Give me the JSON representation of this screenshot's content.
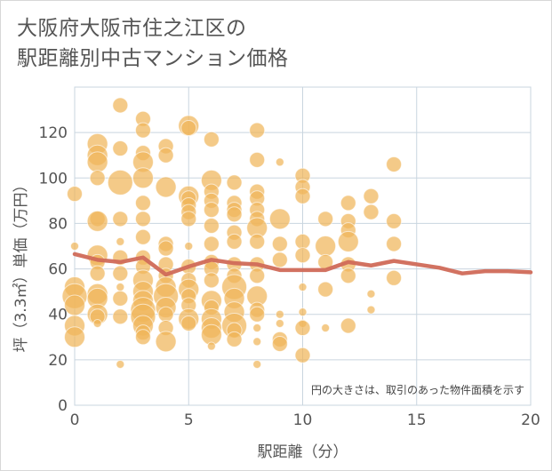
{
  "title": {
    "line1": "大阪府大阪市住之江区の",
    "line2": "駅距離別中古マンション価格"
  },
  "note": "円の大きさは、取引のあった物件面積を示す",
  "colors": {
    "bubble": "#f0b55a",
    "line": "#d06a58",
    "grid": "#c9d5df",
    "plot_bg": "#ffffff"
  },
  "chart_data": {
    "type": "scatter",
    "xlabel": "駅距離（分）",
    "ylabel": "坪（3.3㎡）単価（万円）",
    "xlim": [
      0,
      20
    ],
    "ylim": [
      0,
      140
    ],
    "x_ticks": [
      0,
      5,
      10,
      15,
      20
    ],
    "y_ticks": [
      0,
      20,
      40,
      60,
      80,
      100,
      120
    ],
    "grid": true,
    "points": [
      {
        "x": 0,
        "y": 93,
        "s": 2
      },
      {
        "x": 0,
        "y": 70,
        "s": 1
      },
      {
        "x": 0,
        "y": 52,
        "s": 3
      },
      {
        "x": 0,
        "y": 48,
        "s": 4
      },
      {
        "x": 0,
        "y": 44,
        "s": 3
      },
      {
        "x": 0,
        "y": 35,
        "s": 3
      },
      {
        "x": 0,
        "y": 30,
        "s": 3
      },
      {
        "x": 1,
        "y": 115,
        "s": 3
      },
      {
        "x": 1,
        "y": 110,
        "s": 3
      },
      {
        "x": 1,
        "y": 107,
        "s": 3
      },
      {
        "x": 1,
        "y": 100,
        "s": 2
      },
      {
        "x": 1,
        "y": 82,
        "s": 2
      },
      {
        "x": 1,
        "y": 81,
        "s": 3
      },
      {
        "x": 1,
        "y": 66,
        "s": 3
      },
      {
        "x": 1,
        "y": 63,
        "s": 2
      },
      {
        "x": 1,
        "y": 58,
        "s": 2
      },
      {
        "x": 1,
        "y": 49,
        "s": 3
      },
      {
        "x": 1,
        "y": 47,
        "s": 3
      },
      {
        "x": 1,
        "y": 40,
        "s": 3
      },
      {
        "x": 1,
        "y": 39,
        "s": 2
      },
      {
        "x": 1,
        "y": 36,
        "s": 1
      },
      {
        "x": 2,
        "y": 132,
        "s": 2
      },
      {
        "x": 2,
        "y": 113,
        "s": 2
      },
      {
        "x": 2,
        "y": 98,
        "s": 4
      },
      {
        "x": 2,
        "y": 82,
        "s": 2
      },
      {
        "x": 2,
        "y": 72,
        "s": 1
      },
      {
        "x": 2,
        "y": 65,
        "s": 2
      },
      {
        "x": 2,
        "y": 58,
        "s": 2
      },
      {
        "x": 2,
        "y": 52,
        "s": 1
      },
      {
        "x": 2,
        "y": 47,
        "s": 2
      },
      {
        "x": 2,
        "y": 39,
        "s": 2
      },
      {
        "x": 2,
        "y": 18,
        "s": 1
      },
      {
        "x": 3,
        "y": 126,
        "s": 2
      },
      {
        "x": 3,
        "y": 121,
        "s": 2
      },
      {
        "x": 3,
        "y": 111,
        "s": 2
      },
      {
        "x": 3,
        "y": 107,
        "s": 3
      },
      {
        "x": 3,
        "y": 100,
        "s": 3
      },
      {
        "x": 3,
        "y": 89,
        "s": 2
      },
      {
        "x": 3,
        "y": 82,
        "s": 2
      },
      {
        "x": 3,
        "y": 74,
        "s": 2
      },
      {
        "x": 3,
        "y": 65,
        "s": 2
      },
      {
        "x": 3,
        "y": 61,
        "s": 2
      },
      {
        "x": 3,
        "y": 55,
        "s": 3
      },
      {
        "x": 3,
        "y": 50,
        "s": 3
      },
      {
        "x": 3,
        "y": 46,
        "s": 3
      },
      {
        "x": 3,
        "y": 42,
        "s": 4
      },
      {
        "x": 3,
        "y": 39,
        "s": 4
      },
      {
        "x": 3,
        "y": 35,
        "s": 3
      },
      {
        "x": 3,
        "y": 32,
        "s": 2
      },
      {
        "x": 3,
        "y": 30,
        "s": 2
      },
      {
        "x": 4,
        "y": 114,
        "s": 2
      },
      {
        "x": 4,
        "y": 110,
        "s": 2
      },
      {
        "x": 4,
        "y": 96,
        "s": 3
      },
      {
        "x": 4,
        "y": 71,
        "s": 2
      },
      {
        "x": 4,
        "y": 69,
        "s": 2
      },
      {
        "x": 4,
        "y": 62,
        "s": 2
      },
      {
        "x": 4,
        "y": 57,
        "s": 2
      },
      {
        "x": 4,
        "y": 52,
        "s": 3
      },
      {
        "x": 4,
        "y": 48,
        "s": 4
      },
      {
        "x": 4,
        "y": 43,
        "s": 3
      },
      {
        "x": 4,
        "y": 40,
        "s": 2
      },
      {
        "x": 4,
        "y": 34,
        "s": 2
      },
      {
        "x": 4,
        "y": 28,
        "s": 3
      },
      {
        "x": 5,
        "y": 123,
        "s": 3
      },
      {
        "x": 5,
        "y": 122,
        "s": 2
      },
      {
        "x": 5,
        "y": 92,
        "s": 3
      },
      {
        "x": 5,
        "y": 91,
        "s": 2
      },
      {
        "x": 5,
        "y": 88,
        "s": 2
      },
      {
        "x": 5,
        "y": 85,
        "s": 2
      },
      {
        "x": 5,
        "y": 82,
        "s": 2
      },
      {
        "x": 5,
        "y": 70,
        "s": 1
      },
      {
        "x": 5,
        "y": 61,
        "s": 2
      },
      {
        "x": 5,
        "y": 55,
        "s": 2
      },
      {
        "x": 5,
        "y": 51,
        "s": 3
      },
      {
        "x": 5,
        "y": 48,
        "s": 2
      },
      {
        "x": 5,
        "y": 44,
        "s": 2
      },
      {
        "x": 5,
        "y": 38,
        "s": 3
      },
      {
        "x": 5,
        "y": 36,
        "s": 2
      },
      {
        "x": 6,
        "y": 117,
        "s": 2
      },
      {
        "x": 6,
        "y": 99,
        "s": 3
      },
      {
        "x": 6,
        "y": 94,
        "s": 2
      },
      {
        "x": 6,
        "y": 90,
        "s": 2
      },
      {
        "x": 6,
        "y": 86,
        "s": 2
      },
      {
        "x": 6,
        "y": 79,
        "s": 2
      },
      {
        "x": 6,
        "y": 71,
        "s": 2
      },
      {
        "x": 6,
        "y": 63,
        "s": 2
      },
      {
        "x": 6,
        "y": 60,
        "s": 2
      },
      {
        "x": 6,
        "y": 55,
        "s": 2
      },
      {
        "x": 6,
        "y": 46,
        "s": 3
      },
      {
        "x": 6,
        "y": 43,
        "s": 2
      },
      {
        "x": 6,
        "y": 38,
        "s": 3
      },
      {
        "x": 6,
        "y": 34,
        "s": 3
      },
      {
        "x": 6,
        "y": 31,
        "s": 3
      },
      {
        "x": 6,
        "y": 26,
        "s": 1
      },
      {
        "x": 7,
        "y": 98,
        "s": 2
      },
      {
        "x": 7,
        "y": 89,
        "s": 2
      },
      {
        "x": 7,
        "y": 86,
        "s": 2
      },
      {
        "x": 7,
        "y": 84,
        "s": 2
      },
      {
        "x": 7,
        "y": 76,
        "s": 2
      },
      {
        "x": 7,
        "y": 72,
        "s": 2
      },
      {
        "x": 7,
        "y": 62,
        "s": 2
      },
      {
        "x": 7,
        "y": 57,
        "s": 2
      },
      {
        "x": 7,
        "y": 52,
        "s": 4
      },
      {
        "x": 7,
        "y": 47,
        "s": 3
      },
      {
        "x": 7,
        "y": 41,
        "s": 3
      },
      {
        "x": 7,
        "y": 35,
        "s": 4
      },
      {
        "x": 7,
        "y": 33,
        "s": 2
      },
      {
        "x": 7,
        "y": 29,
        "s": 2
      },
      {
        "x": 8,
        "y": 121,
        "s": 2
      },
      {
        "x": 8,
        "y": 108,
        "s": 2
      },
      {
        "x": 8,
        "y": 94,
        "s": 2
      },
      {
        "x": 8,
        "y": 91,
        "s": 2
      },
      {
        "x": 8,
        "y": 86,
        "s": 2
      },
      {
        "x": 8,
        "y": 82,
        "s": 2
      },
      {
        "x": 8,
        "y": 78,
        "s": 3
      },
      {
        "x": 8,
        "y": 72,
        "s": 2
      },
      {
        "x": 8,
        "y": 62,
        "s": 2
      },
      {
        "x": 8,
        "y": 57,
        "s": 2
      },
      {
        "x": 8,
        "y": 48,
        "s": 3
      },
      {
        "x": 8,
        "y": 42,
        "s": 2
      },
      {
        "x": 8,
        "y": 40,
        "s": 2
      },
      {
        "x": 8,
        "y": 34,
        "s": 1
      },
      {
        "x": 8,
        "y": 28,
        "s": 1
      },
      {
        "x": 8,
        "y": 18,
        "s": 1
      },
      {
        "x": 9,
        "y": 107,
        "s": 1
      },
      {
        "x": 9,
        "y": 82,
        "s": 3
      },
      {
        "x": 9,
        "y": 71,
        "s": 2
      },
      {
        "x": 9,
        "y": 64,
        "s": 2
      },
      {
        "x": 9,
        "y": 40,
        "s": 1
      },
      {
        "x": 9,
        "y": 36,
        "s": 1
      },
      {
        "x": 9,
        "y": 29,
        "s": 2
      },
      {
        "x": 9,
        "y": 27,
        "s": 2
      },
      {
        "x": 10,
        "y": 101,
        "s": 2
      },
      {
        "x": 10,
        "y": 96,
        "s": 2
      },
      {
        "x": 10,
        "y": 92,
        "s": 2
      },
      {
        "x": 10,
        "y": 72,
        "s": 2
      },
      {
        "x": 10,
        "y": 66,
        "s": 2
      },
      {
        "x": 10,
        "y": 52,
        "s": 1
      },
      {
        "x": 10,
        "y": 41,
        "s": 1
      },
      {
        "x": 10,
        "y": 36,
        "s": 1
      },
      {
        "x": 10,
        "y": 34,
        "s": 2
      },
      {
        "x": 10,
        "y": 22,
        "s": 2
      },
      {
        "x": 11,
        "y": 82,
        "s": 2
      },
      {
        "x": 11,
        "y": 70,
        "s": 3
      },
      {
        "x": 11,
        "y": 63,
        "s": 2
      },
      {
        "x": 11,
        "y": 51,
        "s": 2
      },
      {
        "x": 11,
        "y": 34,
        "s": 1
      },
      {
        "x": 12,
        "y": 89,
        "s": 2
      },
      {
        "x": 12,
        "y": 81,
        "s": 2
      },
      {
        "x": 12,
        "y": 77,
        "s": 2
      },
      {
        "x": 12,
        "y": 72,
        "s": 3
      },
      {
        "x": 12,
        "y": 62,
        "s": 2
      },
      {
        "x": 12,
        "y": 57,
        "s": 2
      },
      {
        "x": 12,
        "y": 35,
        "s": 2
      },
      {
        "x": 13,
        "y": 92,
        "s": 2
      },
      {
        "x": 13,
        "y": 85,
        "s": 2
      },
      {
        "x": 13,
        "y": 49,
        "s": 1
      },
      {
        "x": 13,
        "y": 42,
        "s": 1
      },
      {
        "x": 14,
        "y": 106,
        "s": 2
      },
      {
        "x": 14,
        "y": 81,
        "s": 2
      },
      {
        "x": 14,
        "y": 71,
        "s": 2
      },
      {
        "x": 14,
        "y": 56,
        "s": 2
      }
    ],
    "line": {
      "x": [
        0,
        1,
        2,
        3,
        4,
        5,
        6,
        7,
        8,
        9,
        10,
        11,
        12,
        13,
        14,
        15,
        16,
        17,
        18,
        19,
        20
      ],
      "y": [
        66.5,
        64,
        63,
        65,
        57.5,
        61,
        64,
        62.5,
        62,
        59.5,
        59.5,
        59.5,
        63,
        61.5,
        63.5,
        62,
        60.5,
        58,
        59,
        59,
        58.5
      ]
    }
  }
}
